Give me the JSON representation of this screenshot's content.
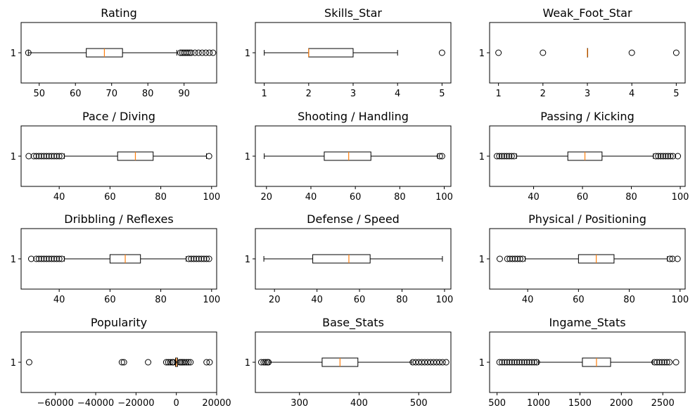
{
  "chart_data": [
    {
      "type": "boxplot",
      "title": "Rating",
      "xlim": [
        45,
        99
      ],
      "xticks": [
        50,
        60,
        70,
        80,
        90
      ],
      "xticklabels": [
        "50",
        "60",
        "70",
        "80",
        "90"
      ],
      "yticklabel": "1",
      "box": {
        "whislo": 47,
        "q1": 63,
        "med": 68,
        "q3": 73,
        "whishi": 88
      },
      "fliers": [
        47,
        89,
        89.5,
        90,
        90.5,
        91,
        91.5,
        92,
        93,
        94,
        95,
        96,
        97,
        98
      ]
    },
    {
      "type": "boxplot",
      "title": "Skills_Star",
      "xlim": [
        0.8,
        5.2
      ],
      "xticks": [
        1,
        2,
        3,
        4,
        5
      ],
      "xticklabels": [
        "1",
        "2",
        "3",
        "4",
        "5"
      ],
      "yticklabel": "1",
      "box": {
        "whislo": 1,
        "q1": 2,
        "med": 2,
        "q3": 3,
        "whishi": 4
      },
      "fliers": [
        5
      ]
    },
    {
      "type": "boxplot",
      "title": "Weak_Foot_Star",
      "xlim": [
        0.8,
        5.2
      ],
      "xticks": [
        1,
        2,
        3,
        4,
        5
      ],
      "xticklabels": [
        "1",
        "2",
        "3",
        "4",
        "5"
      ],
      "yticklabel": "1",
      "box": {
        "whislo": 3,
        "q1": 3,
        "med": 3,
        "q3": 3,
        "whishi": 3
      },
      "fliers": [
        1,
        2,
        4,
        5
      ]
    },
    {
      "type": "boxplot",
      "title": "Pace / Diving",
      "xlim": [
        25,
        102
      ],
      "xticks": [
        40,
        60,
        80,
        100
      ],
      "xticklabels": [
        "40",
        "60",
        "80",
        "100"
      ],
      "yticklabel": "1",
      "box": {
        "whislo": 42,
        "q1": 63,
        "med": 70,
        "q3": 77,
        "whishi": 98
      },
      "fliers": [
        28,
        30,
        31,
        32,
        33,
        34,
        35,
        36,
        37,
        38,
        39,
        40,
        41,
        99
      ]
    },
    {
      "type": "boxplot",
      "title": "Shooting / Handling",
      "xlim": [
        15,
        103
      ],
      "xticks": [
        20,
        40,
        60,
        80,
        100
      ],
      "xticklabels": [
        "20",
        "40",
        "60",
        "80",
        "100"
      ],
      "yticklabel": "1",
      "box": {
        "whislo": 19,
        "q1": 46,
        "med": 57,
        "q3": 67,
        "whishi": 97
      },
      "fliers": [
        98,
        99
      ]
    },
    {
      "type": "boxplot",
      "title": "Passing / Kicking",
      "xlim": [
        22,
        102
      ],
      "xticks": [
        40,
        60,
        80,
        100
      ],
      "xticklabels": [
        "40",
        "60",
        "80",
        "100"
      ],
      "yticklabel": "1",
      "box": {
        "whislo": 33,
        "q1": 54,
        "med": 61,
        "q3": 68,
        "whishi": 89
      },
      "fliers": [
        25,
        26,
        27,
        28,
        29,
        30,
        31,
        32,
        90,
        91,
        92,
        93,
        94,
        95,
        96,
        97,
        99
      ]
    },
    {
      "type": "boxplot",
      "title": "Dribbling / Reflexes",
      "xlim": [
        25,
        102
      ],
      "xticks": [
        40,
        60,
        80,
        100
      ],
      "xticklabels": [
        "40",
        "60",
        "80",
        "100"
      ],
      "yticklabel": "1",
      "box": {
        "whislo": 42,
        "q1": 60,
        "med": 66,
        "q3": 72,
        "whishi": 90
      },
      "fliers": [
        29,
        31,
        32,
        33,
        34,
        35,
        36,
        37,
        38,
        39,
        40,
        41,
        91,
        92,
        93,
        94,
        95,
        96,
        97,
        98,
        99
      ]
    },
    {
      "type": "boxplot",
      "title": "Defense / Speed",
      "xlim": [
        11,
        103
      ],
      "xticks": [
        20,
        40,
        60,
        80,
        100
      ],
      "xticklabels": [
        "20",
        "40",
        "60",
        "80",
        "100"
      ],
      "yticklabel": "1",
      "box": {
        "whislo": 15,
        "q1": 38,
        "med": 55,
        "q3": 65,
        "whishi": 99
      },
      "fliers": []
    },
    {
      "type": "boxplot",
      "title": "Physical / Positioning",
      "xlim": [
        25,
        102
      ],
      "xticks": [
        40,
        60,
        80,
        100
      ],
      "xticklabels": [
        "40",
        "60",
        "80",
        "100"
      ],
      "yticklabel": "1",
      "box": {
        "whislo": 39,
        "q1": 60,
        "med": 67,
        "q3": 74,
        "whishi": 95
      },
      "fliers": [
        29,
        32,
        33,
        34,
        35,
        36,
        37,
        38,
        96,
        97,
        99
      ]
    },
    {
      "type": "boxplot",
      "title": "Popularity",
      "xlim": [
        -77000,
        20000
      ],
      "xticks": [
        -60000,
        -40000,
        -20000,
        0,
        20000
      ],
      "xticklabels": [
        "−60000",
        "−40000",
        "−20000",
        "0",
        "20000"
      ],
      "yticklabel": "1",
      "box": {
        "whislo": -800,
        "q1": -400,
        "med": 0,
        "q3": 600,
        "whishi": 1200
      },
      "fliers": [
        -73000,
        -27000,
        -26000,
        -14000,
        -5000,
        -4000,
        -3000,
        -2000,
        -1500,
        1800,
        2500,
        3200,
        4000,
        5000,
        6000,
        7000,
        15000,
        16500
      ]
    },
    {
      "type": "boxplot",
      "title": "Base_Stats",
      "xlim": [
        226,
        554
      ],
      "xticks": [
        300,
        400,
        500
      ],
      "xticklabels": [
        "300",
        "400",
        "500"
      ],
      "yticklabel": "1",
      "box": {
        "whislo": 250,
        "q1": 338,
        "med": 368,
        "q3": 398,
        "whishi": 488
      },
      "fliers": [
        236,
        240,
        243,
        246,
        248,
        490,
        495,
        500,
        505,
        510,
        515,
        520,
        525,
        530,
        535,
        540,
        546
      ]
    },
    {
      "type": "boxplot",
      "title": "Ingame_Stats",
      "xlim": [
        410,
        2770
      ],
      "xticks": [
        500,
        1000,
        1500,
        2000,
        2500
      ],
      "xticklabels": [
        "500",
        "1000",
        "1500",
        "2000",
        "2500"
      ],
      "yticklabel": "1",
      "box": {
        "whislo": 1000,
        "q1": 1530,
        "med": 1700,
        "q3": 1870,
        "whishi": 2380
      },
      "fliers": [
        530,
        560,
        590,
        620,
        650,
        680,
        710,
        740,
        770,
        800,
        830,
        860,
        890,
        920,
        950,
        980,
        2400,
        2430,
        2460,
        2490,
        2520,
        2550,
        2580,
        2660
      ]
    }
  ]
}
